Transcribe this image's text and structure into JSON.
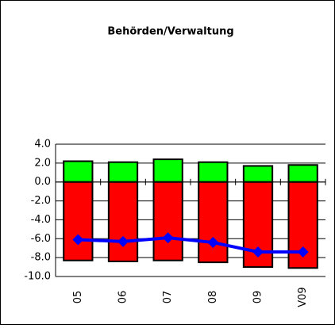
{
  "chart_data": {
    "type": "bar",
    "title": "Behörden/Verwaltung",
    "categories": [
      "05",
      "06",
      "07",
      "08",
      "09",
      "V09"
    ],
    "series": [
      {
        "color": "#00ff00",
        "values": [
          2.2,
          2.1,
          2.4,
          2.1,
          1.7,
          1.8
        ]
      },
      {
        "color": "#ff0000",
        "values": [
          -8.3,
          -8.4,
          -8.3,
          -8.5,
          -9.0,
          -9.1
        ]
      },
      {
        "type": "line",
        "color": "#0000ff",
        "values": [
          -6.1,
          -6.3,
          -5.9,
          -6.4,
          -7.4,
          -7.4
        ]
      }
    ],
    "ylim": [
      -10,
      4
    ],
    "yticks": [
      {
        "value": 4,
        "label": "4.0"
      },
      {
        "value": 2,
        "label": "2.0"
      },
      {
        "value": 0,
        "label": "0.0"
      },
      {
        "value": -2,
        "label": "-2.0"
      },
      {
        "value": -4,
        "label": "-4.0"
      },
      {
        "value": -6,
        "label": "-6.0"
      },
      {
        "value": -8,
        "label": "-8.0"
      },
      {
        "value": -10,
        "label": "-10.0"
      }
    ],
    "grid": true
  }
}
